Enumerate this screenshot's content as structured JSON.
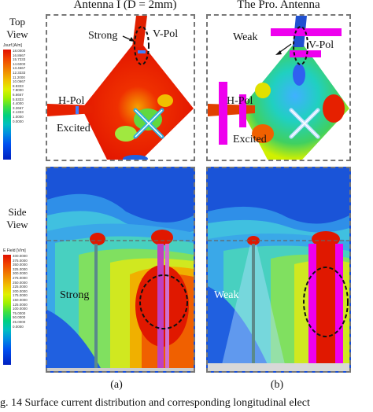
{
  "titles": {
    "left": "Antenna I (D = 2mm)",
    "right": "The Pro. Antenna"
  },
  "row_labels": {
    "top": [
      "Top",
      "View"
    ],
    "side": [
      "Side",
      "View"
    ]
  },
  "top_panels": {
    "left": {
      "strong_label": "Strong",
      "vpol_label": "V-Pol",
      "hpol_label": "H-Pol",
      "excited_label": "Excited"
    },
    "right": {
      "weak_label": "Weak",
      "vpol_label": "V-Pol",
      "hpol_label": "H-Pol",
      "excited_label": "Excited"
    }
  },
  "side_panels": {
    "left": {
      "label": "Strong"
    },
    "right": {
      "label": "Weak"
    }
  },
  "legend_top": {
    "title": "Jsurf [A/m]",
    "values": [
      "18.0000",
      "16.8667",
      "15.7333",
      "14.6000",
      "13.4667",
      "12.3333",
      "11.2000",
      "10.0667",
      "8.9333",
      "7.8000",
      "6.6667",
      "5.5333",
      "4.4000",
      "3.2667",
      "2.1333",
      "1.0000",
      "0.0000"
    ]
  },
  "legend_side": {
    "title": "E Field [V/m]",
    "values": [
      "400.0000",
      "375.0000",
      "350.0000",
      "325.0000",
      "300.0000",
      "275.0000",
      "250.0000",
      "225.0000",
      "200.0000",
      "175.0000",
      "150.0000",
      "125.0000",
      "100.0000",
      "75.0000",
      "50.0000",
      "25.0000",
      "0.0000"
    ]
  },
  "subcaptions": {
    "left": "(a)",
    "right": "(b)"
  },
  "figure_caption": "g. 14    Surface current distribution and corresponding longitudinal elect",
  "colors": {
    "panel_border": "#777777",
    "vpol_bar": "#ee00ee",
    "field_red": "#e01000",
    "field_blue": "#1040d0"
  }
}
